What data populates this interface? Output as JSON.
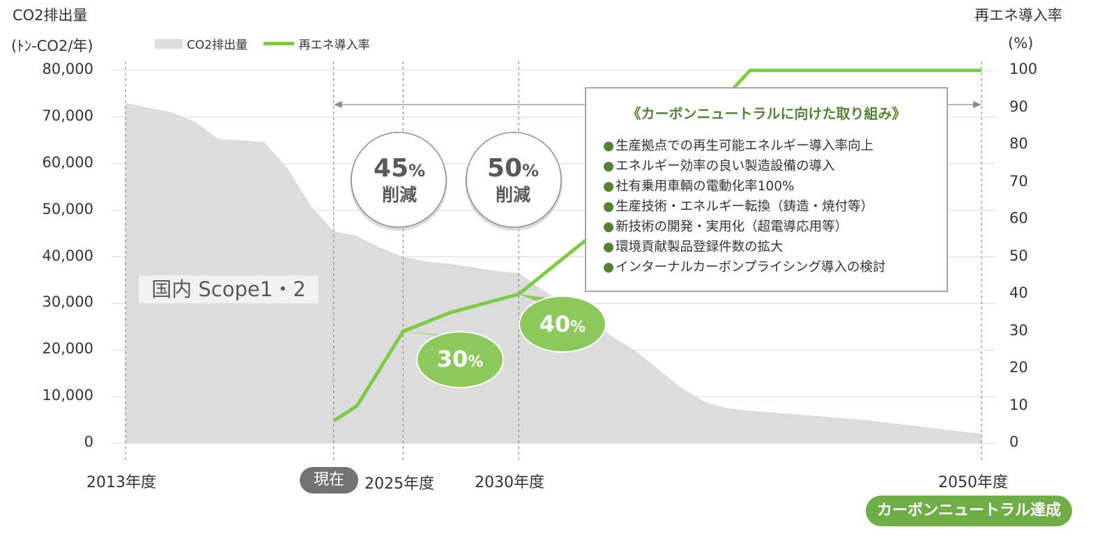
{
  "chart_data": {
    "type": "area+line",
    "left_axis": {
      "title": "CO2排出量",
      "unit": "(ﾄﾝ-CO2/年)",
      "ticks": [
        "80,000",
        "70,000",
        "60,000",
        "50,000",
        "40,000",
        "30,000",
        "20,000",
        "10,000",
        "0"
      ],
      "ylim": [
        0,
        80000
      ]
    },
    "right_axis": {
      "title": "再エネ導入率",
      "unit": "(%)",
      "ticks": [
        "100",
        "90",
        "80",
        "70",
        "60",
        "50",
        "40",
        "30",
        "20",
        "10",
        "0"
      ],
      "ylim": [
        0,
        100
      ]
    },
    "x_labels": [
      {
        "label": "2013年度",
        "year": 2013
      },
      {
        "label": "2025年度",
        "year": 2025
      },
      {
        "label": "2030年度",
        "year": 2030
      },
      {
        "label": "2050年度",
        "year": 2050
      }
    ],
    "series": [
      {
        "name": "CO2排出量",
        "kind": "area",
        "color": "#dcdcdc",
        "points": [
          [
            2013,
            73000
          ],
          [
            2015,
            71000
          ],
          [
            2016,
            69000
          ],
          [
            2017,
            65300
          ],
          [
            2018,
            65000
          ],
          [
            2019,
            64600
          ],
          [
            2020,
            59000
          ],
          [
            2021,
            51000
          ],
          [
            2022,
            45500
          ],
          [
            2023,
            44500
          ],
          [
            2024,
            42000
          ],
          [
            2025,
            40000
          ],
          [
            2026,
            39000
          ],
          [
            2027,
            38500
          ],
          [
            2028,
            37800
          ],
          [
            2029,
            37000
          ],
          [
            2030,
            36500
          ],
          [
            2031,
            33000
          ],
          [
            2032,
            30000
          ],
          [
            2033,
            27000
          ],
          [
            2034,
            23000
          ],
          [
            2035,
            20000
          ],
          [
            2036,
            16000
          ],
          [
            2037,
            12000
          ],
          [
            2038,
            9000
          ],
          [
            2039,
            7500
          ],
          [
            2040,
            7000
          ],
          [
            2045,
            5000
          ],
          [
            2050,
            2000
          ]
        ]
      },
      {
        "name": "再エネ導入率",
        "kind": "line",
        "color": "#7dca46",
        "points": [
          [
            2022,
            6
          ],
          [
            2023,
            10
          ],
          [
            2025,
            30
          ],
          [
            2027,
            35
          ],
          [
            2030,
            40
          ],
          [
            2032,
            50
          ],
          [
            2033,
            55
          ],
          [
            2035,
            65
          ],
          [
            2037,
            80
          ],
          [
            2040,
            100
          ],
          [
            2050,
            100
          ]
        ]
      }
    ],
    "annotations": {
      "current_marker": "現在",
      "reductions": [
        {
          "pct": "45",
          "unit": "%",
          "word": "削減",
          "year": 2025
        },
        {
          "pct": "50",
          "unit": "%",
          "word": "削減",
          "year": 2030
        }
      ],
      "rate_callouts": [
        {
          "value": "30",
          "unit": "%",
          "year": 2025
        },
        {
          "value": "40",
          "unit": "%",
          "year": 2030
        }
      ],
      "scope_label": "国内 Scope1・2",
      "goal_badge": "カーボンニュートラル達成"
    },
    "initiatives": {
      "title": "《カーボンニュートラルに向けた取り組み》",
      "bullet": "●",
      "items": [
        "生産拠点での再生可能エネルギー導入率向上",
        "エネルギー効率の良い製造設備の導入",
        "社有乗用車輌の電動化率100%",
        "生産技術・エネルギー転換（鋳造・焼付等）",
        "新技術の開発・実用化（超電導応用等）",
        "環境貢献製品登録件数の拡大",
        "インターナルカーボンプライシング導入の検討"
      ]
    }
  }
}
